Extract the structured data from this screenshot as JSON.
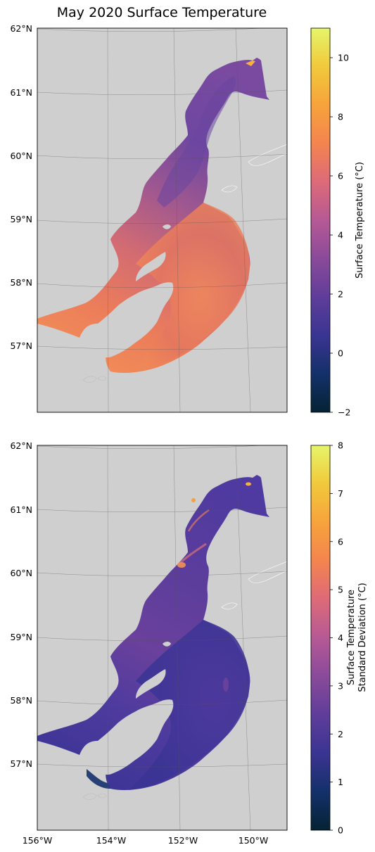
{
  "figure": {
    "title": "May 2020 Surface Temperature"
  },
  "map_extent": {
    "lon_min": -156,
    "lon_max": -149,
    "lat_min": 56,
    "lat_max": 62
  },
  "axes": {
    "lat_ticks": [
      "57°N",
      "58°N",
      "59°N",
      "60°N",
      "61°N",
      "62°N"
    ],
    "lon_ticks": [
      "156°W",
      "154°W",
      "152°W",
      "150°W"
    ]
  },
  "colors": {
    "land": "#cfcfcf",
    "land_stroke": "#bdbdbd",
    "gridline": "#555555"
  },
  "colormap": {
    "name": "thermal",
    "stops": [
      "#042333",
      "#14306a",
      "#3a3492",
      "#5f3d9a",
      "#8a4a9a",
      "#b65995",
      "#dd6a78",
      "#f4844f",
      "#f7a33b",
      "#f1c93b",
      "#e6f56a"
    ]
  },
  "panels": [
    {
      "colorbar": {
        "label": "Surface Temperature (°C)",
        "label_lines": [
          "Surface Temperature (°C)"
        ],
        "vmin": -2,
        "vmax": 11,
        "ticks": [
          "-2",
          "0",
          "2",
          "4",
          "6",
          "8",
          "10"
        ]
      },
      "field_description_values": {
        "inner_inlet": 3.2,
        "mid_inlet": 4.5,
        "lower_inlet": 6.5,
        "shelf": 7.0,
        "head_warm_spot": 9.5
      }
    },
    {
      "colorbar": {
        "label": "Surface Temperature Standard Deviation (°C)",
        "label_lines": [
          "Surface Temperature",
          "Standard Deviation (°C)"
        ],
        "vmin": 0,
        "vmax": 8,
        "ticks": [
          "0",
          "1",
          "2",
          "3",
          "4",
          "5",
          "6",
          "7",
          "8"
        ]
      },
      "field_description_values": {
        "inner_inlet": 2.2,
        "mid_inlet": 2.8,
        "lower_inlet": 2.2,
        "shelf": 1.9,
        "hot_spots": 5.0
      }
    }
  ]
}
